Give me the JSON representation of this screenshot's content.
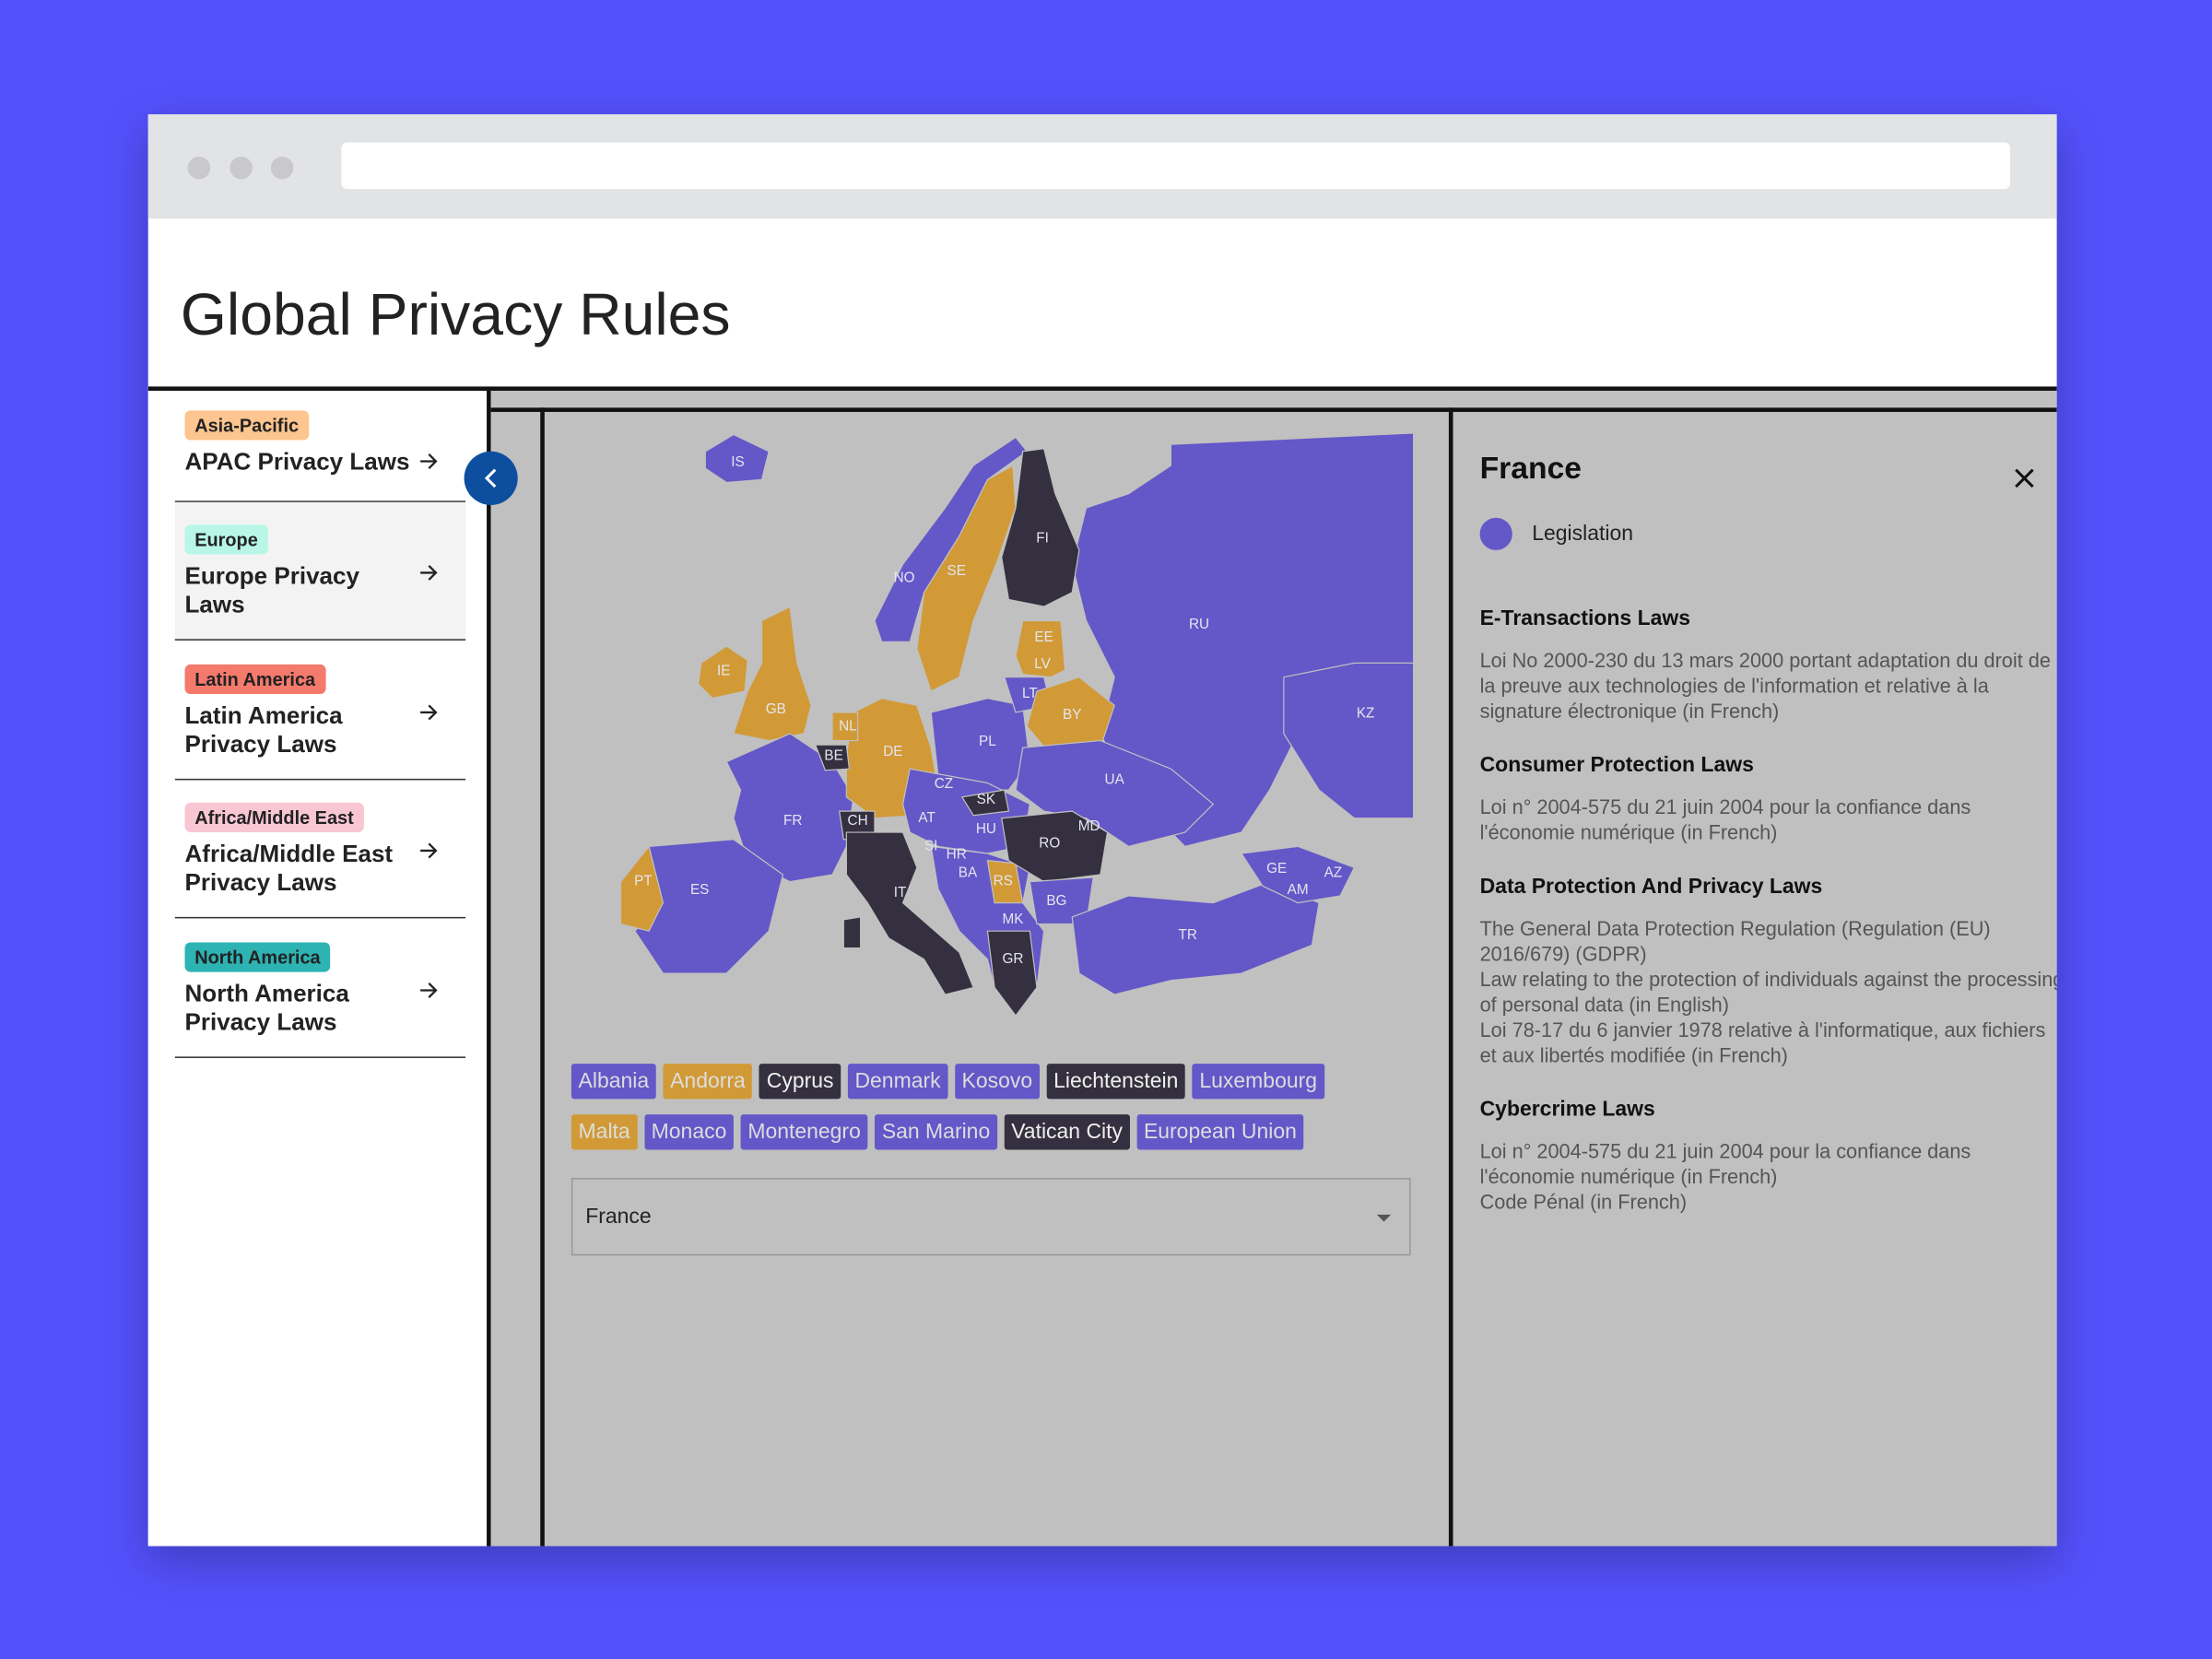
{
  "page": {
    "title": "Global Privacy Rules"
  },
  "sidebar": {
    "items": [
      {
        "tag": "Asia-Pacific",
        "title": "APAC Privacy Laws"
      },
      {
        "tag": "Europe",
        "title": "Europe Privacy Laws"
      },
      {
        "tag": "Latin America",
        "title": "Latin America Privacy Laws"
      },
      {
        "tag": "Africa/Middle East",
        "title": "Africa/Middle East Privacy Laws"
      },
      {
        "tag": "North America",
        "title": "North America Privacy Laws"
      }
    ]
  },
  "map": {
    "country_codes": [
      "IS",
      "NO",
      "SE",
      "FI",
      "RU",
      "EE",
      "LV",
      "LT",
      "BY",
      "IE",
      "GB",
      "NL",
      "BE",
      "DE",
      "PL",
      "UA",
      "KZ",
      "FR",
      "CZ",
      "SK",
      "CH",
      "AT",
      "HU",
      "MD",
      "RO",
      "PT",
      "ES",
      "SI",
      "HR",
      "BA",
      "RS",
      "IT",
      "BG",
      "MK",
      "GR",
      "TR",
      "GE",
      "AZ",
      "AM"
    ]
  },
  "tags": [
    [
      "Albania",
      "Andorra",
      "Cyprus",
      "Denmark",
      "Kosovo",
      "Liechtenstein",
      "Luxembourg"
    ],
    [
      "Malta",
      "Monaco",
      "Montenegro",
      "San Marino",
      "Vatican City",
      "European Union"
    ]
  ],
  "select": {
    "value": "France"
  },
  "detail": {
    "title": "France",
    "legend": "Legislation",
    "sections": [
      {
        "heading": "E-Transactions Laws",
        "entries": [
          "Loi No 2000-230 du 13 mars 2000 portant adaptation du droit de la preuve aux technologies de l'information et relative à la signature électronique (in French)"
        ]
      },
      {
        "heading": "Consumer Protection Laws",
        "entries": [
          "Loi n° 2004-575 du 21 juin 2004 pour la confiance dans l'économie numérique (in French)"
        ]
      },
      {
        "heading": "Data Protection And Privacy Laws",
        "entries": [
          "The General Data Protection Regulation (Regulation (EU) 2016/679) (GDPR)",
          "Law relating to the protection of individuals against the processing of personal data (in English)",
          "Loi 78-17 du 6 janvier 1978 relative à l'informatique, aux fichiers et aux libertés modifiée (in French)"
        ]
      },
      {
        "heading": "Cybercrime Laws",
        "entries": [
          "Loi n° 2004-575 du 21 juin 2004 pour la confiance dans l'économie numérique (in French)",
          "Code Pénal (in French)"
        ]
      }
    ]
  }
}
